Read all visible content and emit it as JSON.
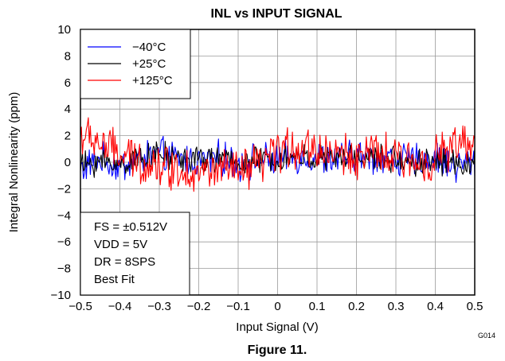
{
  "chart_data": {
    "type": "line",
    "title": "INL vs INPUT SIGNAL",
    "xlabel": "Input Signal (V)",
    "ylabel": "Integral Nonlinearity (ppm)",
    "xlim": [
      -0.5,
      0.5
    ],
    "ylim": [
      -10,
      10
    ],
    "xticks": [
      -0.5,
      -0.4,
      -0.3,
      -0.2,
      -0.1,
      0,
      0.1,
      0.2,
      0.3,
      0.4,
      0.5
    ],
    "xtick_labels": [
      "−0.5",
      "−0.4",
      "−0.3",
      "−0.2",
      "−0.1",
      "0",
      "0.1",
      "0.2",
      "0.3",
      "0.4",
      "0.5"
    ],
    "yticks": [
      -10,
      -8,
      -6,
      -4,
      -2,
      0,
      2,
      4,
      6,
      8,
      10
    ],
    "ytick_labels": [
      "−10",
      "−8",
      "−6",
      "−4",
      "−2",
      "0",
      "2",
      "4",
      "6",
      "8",
      "10"
    ],
    "grid": true,
    "legend_position": "top-left",
    "series": [
      {
        "name": "−40°C",
        "color": "#0000ff",
        "x": [
          -0.5,
          -0.45,
          -0.4,
          -0.35,
          -0.3,
          -0.25,
          -0.2,
          -0.15,
          -0.1,
          -0.05,
          0,
          0.05,
          0.1,
          0.15,
          0.2,
          0.25,
          0.3,
          0.35,
          0.4,
          0.45,
          0.5
        ],
        "y": [
          -0.5,
          0.2,
          -0.4,
          0.3,
          0.6,
          0.2,
          0.1,
          0.3,
          -0.1,
          0.2,
          0.1,
          0.4,
          0.3,
          0.2,
          0.5,
          0.4,
          0.2,
          0.1,
          0.3,
          -0.3,
          0.1
        ]
      },
      {
        "name": "+25°C",
        "color": "#000000",
        "x": [
          -0.5,
          -0.45,
          -0.4,
          -0.35,
          -0.3,
          -0.25,
          -0.2,
          -0.15,
          -0.1,
          -0.05,
          0,
          0.05,
          0.1,
          0.15,
          0.2,
          0.25,
          0.3,
          0.35,
          0.4,
          0.45,
          0.5
        ],
        "y": [
          -0.3,
          0.1,
          -0.2,
          0.4,
          0.5,
          0.3,
          0.2,
          0.3,
          0.0,
          0.1,
          0.2,
          0.4,
          0.2,
          0.3,
          0.4,
          0.3,
          0.2,
          0.0,
          0.2,
          -0.1,
          0.0
        ]
      },
      {
        "name": "+125°C",
        "color": "#ff0000",
        "x": [
          -0.5,
          -0.45,
          -0.4,
          -0.35,
          -0.3,
          -0.25,
          -0.2,
          -0.15,
          -0.1,
          -0.05,
          0,
          0.05,
          0.1,
          0.15,
          0.2,
          0.25,
          0.3,
          0.35,
          0.4,
          0.45,
          0.5
        ],
        "y": [
          2.0,
          1.5,
          0.5,
          0.0,
          -0.2,
          -0.5,
          -0.8,
          -0.6,
          -0.8,
          -0.4,
          0.8,
          1.2,
          1.0,
          0.6,
          0.5,
          0.6,
          0.2,
          0.0,
          0.4,
          1.3,
          0.8
        ]
      }
    ],
    "annotations": [
      "FS = ±0.512V",
      "VDD = 5V",
      "DR = 8SPS",
      "Best Fit"
    ]
  },
  "figure_code": "G014",
  "caption": "Figure 11."
}
